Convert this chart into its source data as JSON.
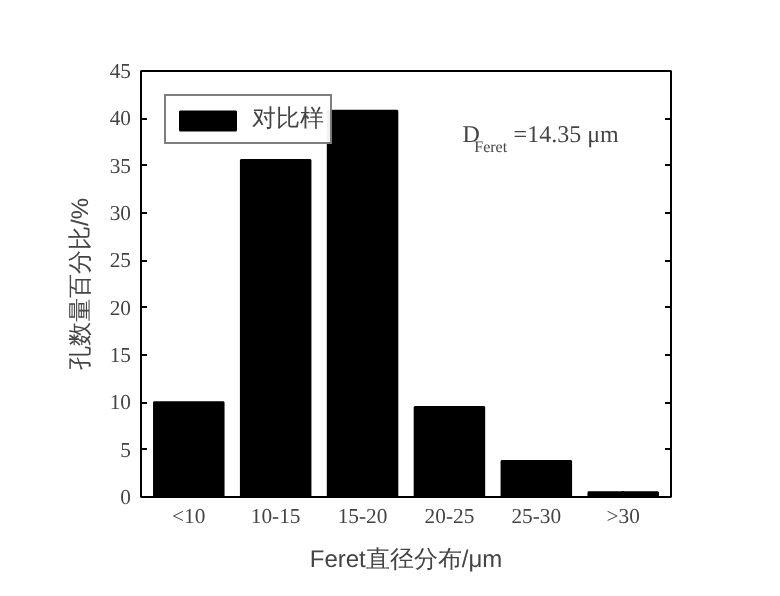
{
  "chart_data": {
    "type": "bar",
    "categories": [
      "<10",
      "10-15",
      "15-20",
      "20-25",
      "25-30",
      ">30"
    ],
    "series": [
      {
        "name": "对比样",
        "color": "#000000",
        "values": [
          10,
          35.6,
          40.8,
          9.5,
          3.8,
          0.5
        ]
      }
    ],
    "xlabel": "Feret直径分布/μm",
    "ylabel": "孔数量百分比/%",
    "annotations": [
      "D$_{Feret}$=14.35 μm"
    ],
    "ylim": [
      0,
      45
    ],
    "yticks": [
      0,
      5,
      10,
      15,
      20,
      25,
      30,
      35,
      40,
      45
    ],
    "legend": "top left",
    "grid": false
  }
}
